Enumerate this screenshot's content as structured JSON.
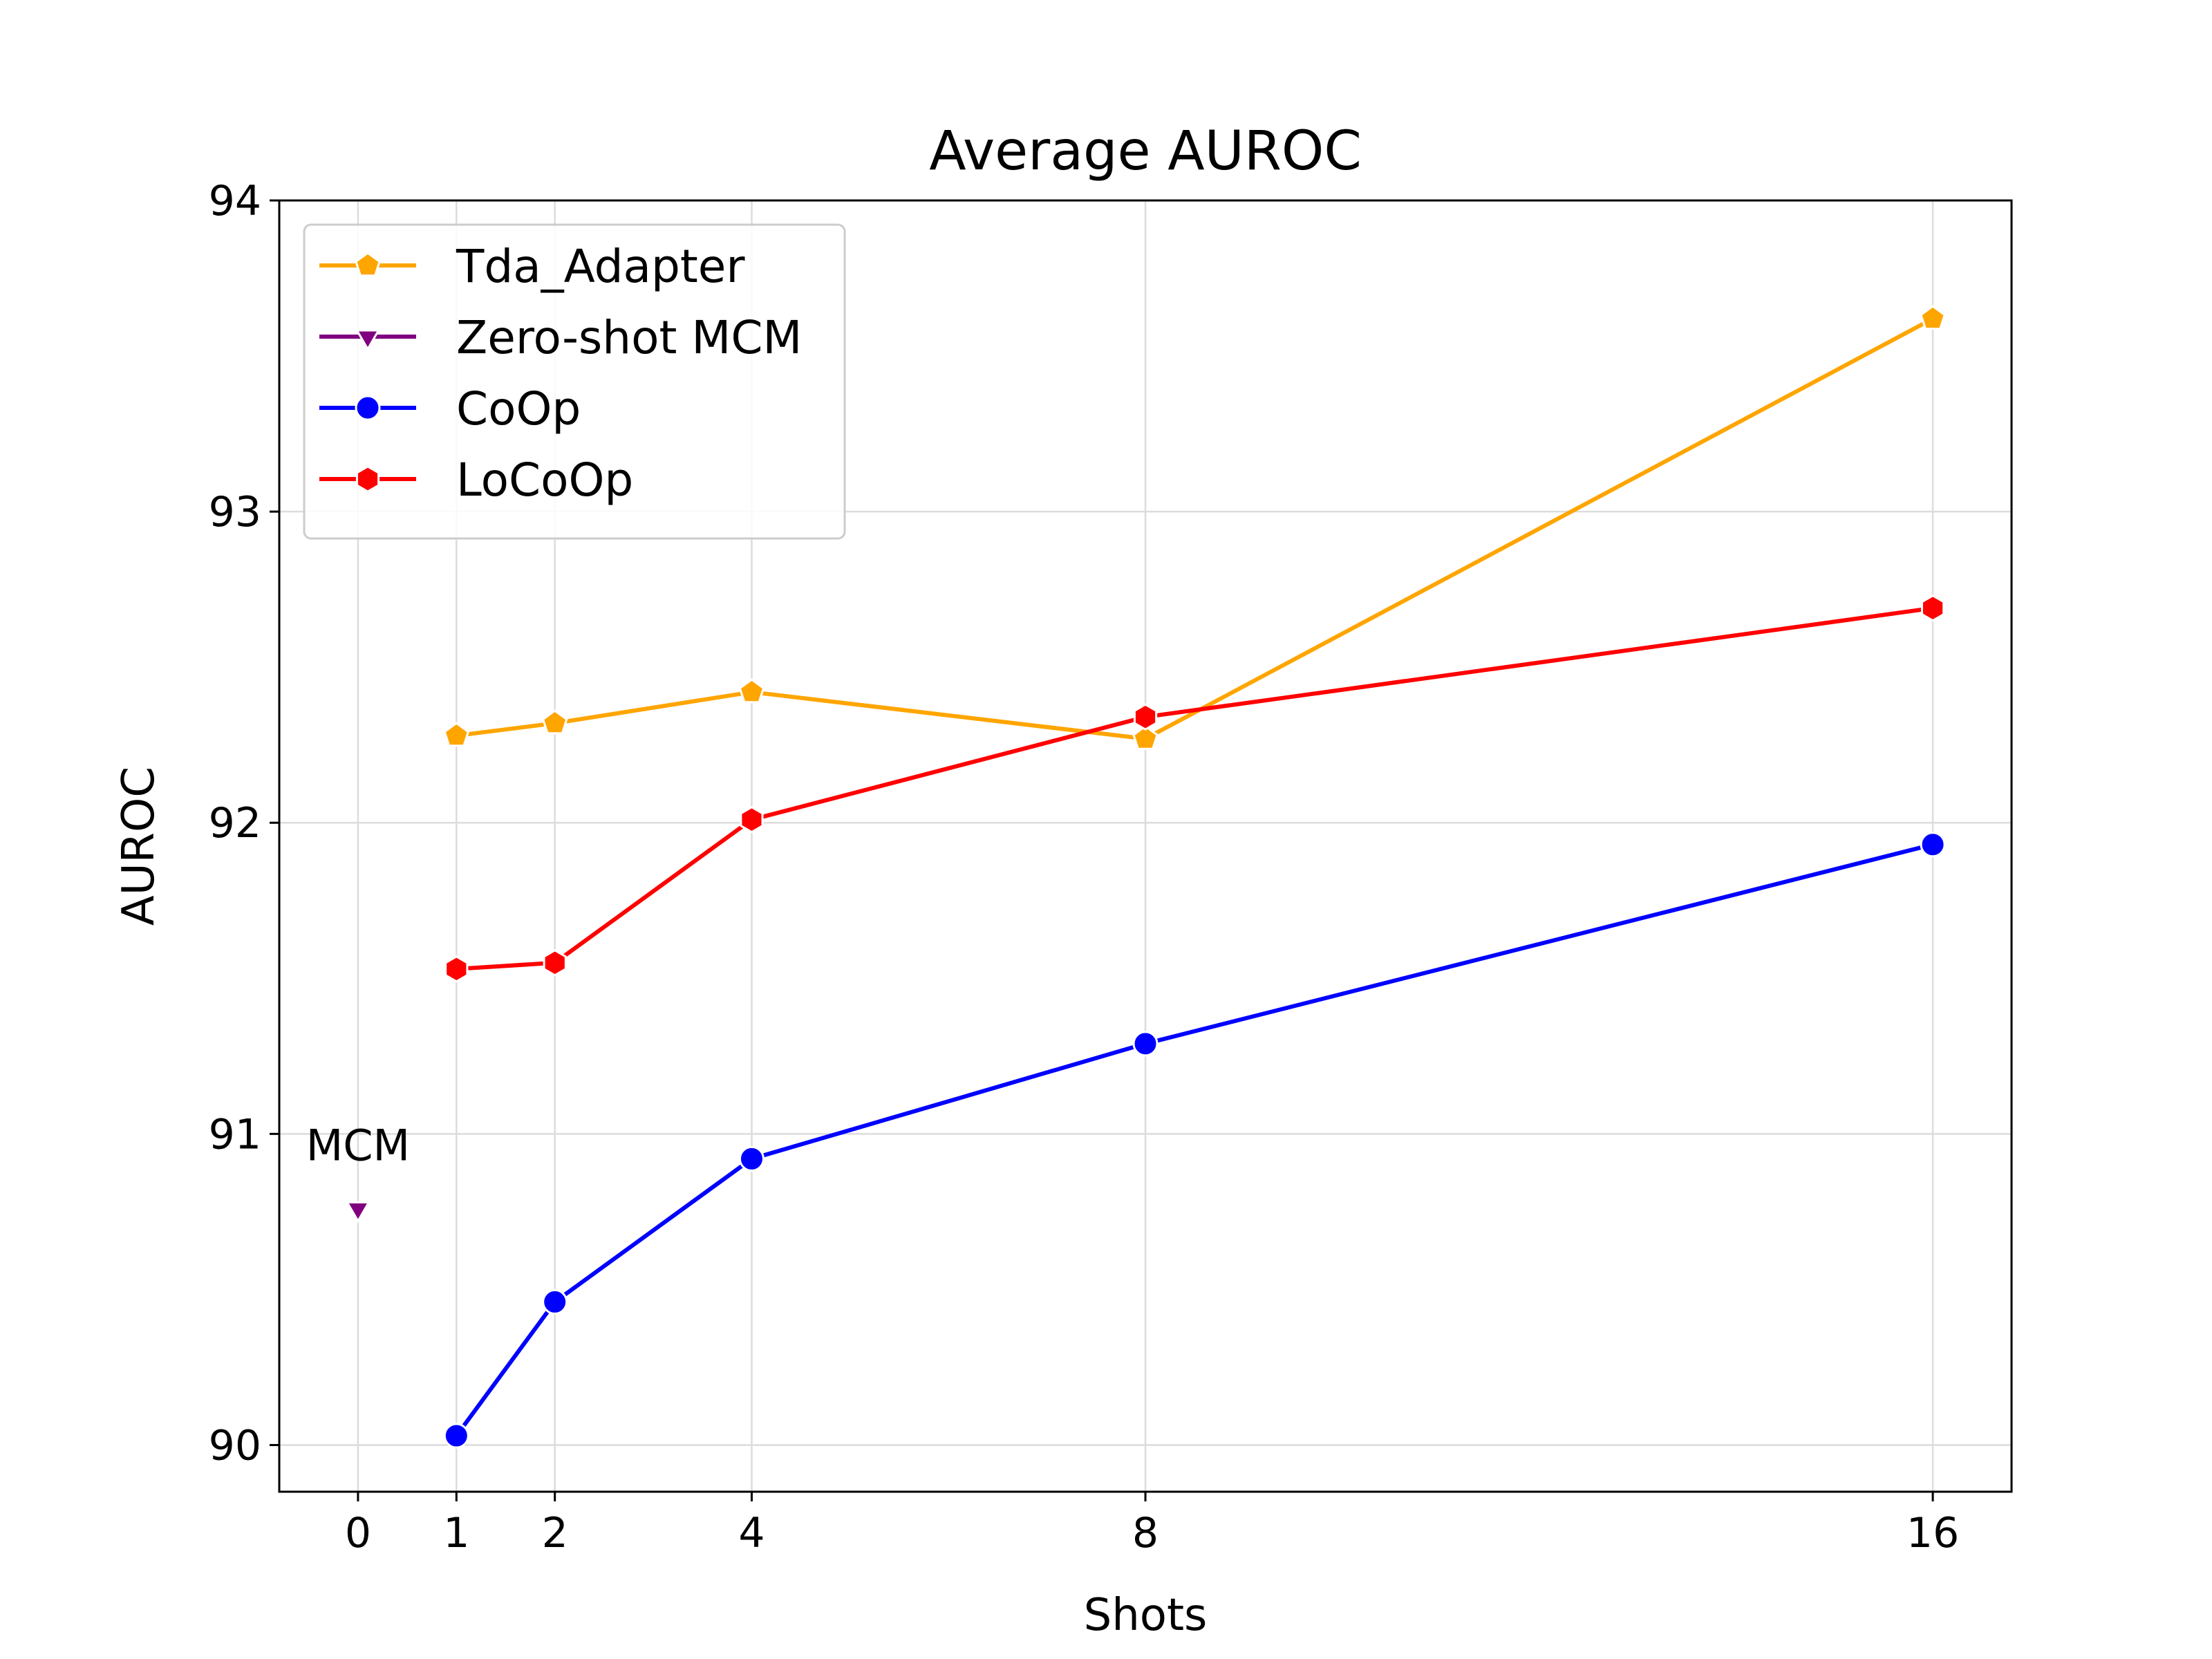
{
  "chart_data": {
    "type": "line",
    "title": "Average AUROC",
    "xlabel": "Shots",
    "ylabel": "AUROC",
    "xticks": [
      0,
      1,
      2,
      4,
      8,
      16
    ],
    "yticks": [
      90,
      91,
      92,
      93,
      94
    ],
    "xlim": [
      -0.8,
      16.8
    ],
    "ylim": [
      89.85,
      94.0
    ],
    "grid": true,
    "legend_position": "top-left",
    "series": [
      {
        "name": "Tda_Adapter",
        "color": "#FFA500",
        "marker": "pentagon",
        "x": [
          1,
          2,
          4,
          8,
          16
        ],
        "values": [
          92.28,
          92.32,
          92.42,
          92.27,
          93.62
        ]
      },
      {
        "name": "Zero-shot MCM",
        "color": "#800080",
        "marker": "triangle-down",
        "x": [
          0
        ],
        "values": [
          90.76
        ]
      },
      {
        "name": "CoOp",
        "color": "#0000FF",
        "marker": "circle",
        "x": [
          1,
          2,
          4,
          8,
          16
        ],
        "values": [
          90.03,
          90.46,
          90.92,
          91.29,
          91.93
        ]
      },
      {
        "name": "LoCoOp",
        "color": "#FF0000",
        "marker": "hexagon",
        "x": [
          1,
          2,
          4,
          8,
          16
        ],
        "values": [
          91.53,
          91.55,
          92.01,
          92.34,
          92.69
        ]
      }
    ],
    "annotations": [
      {
        "text": "MCM",
        "x": 0,
        "y": 90.76
      }
    ]
  }
}
